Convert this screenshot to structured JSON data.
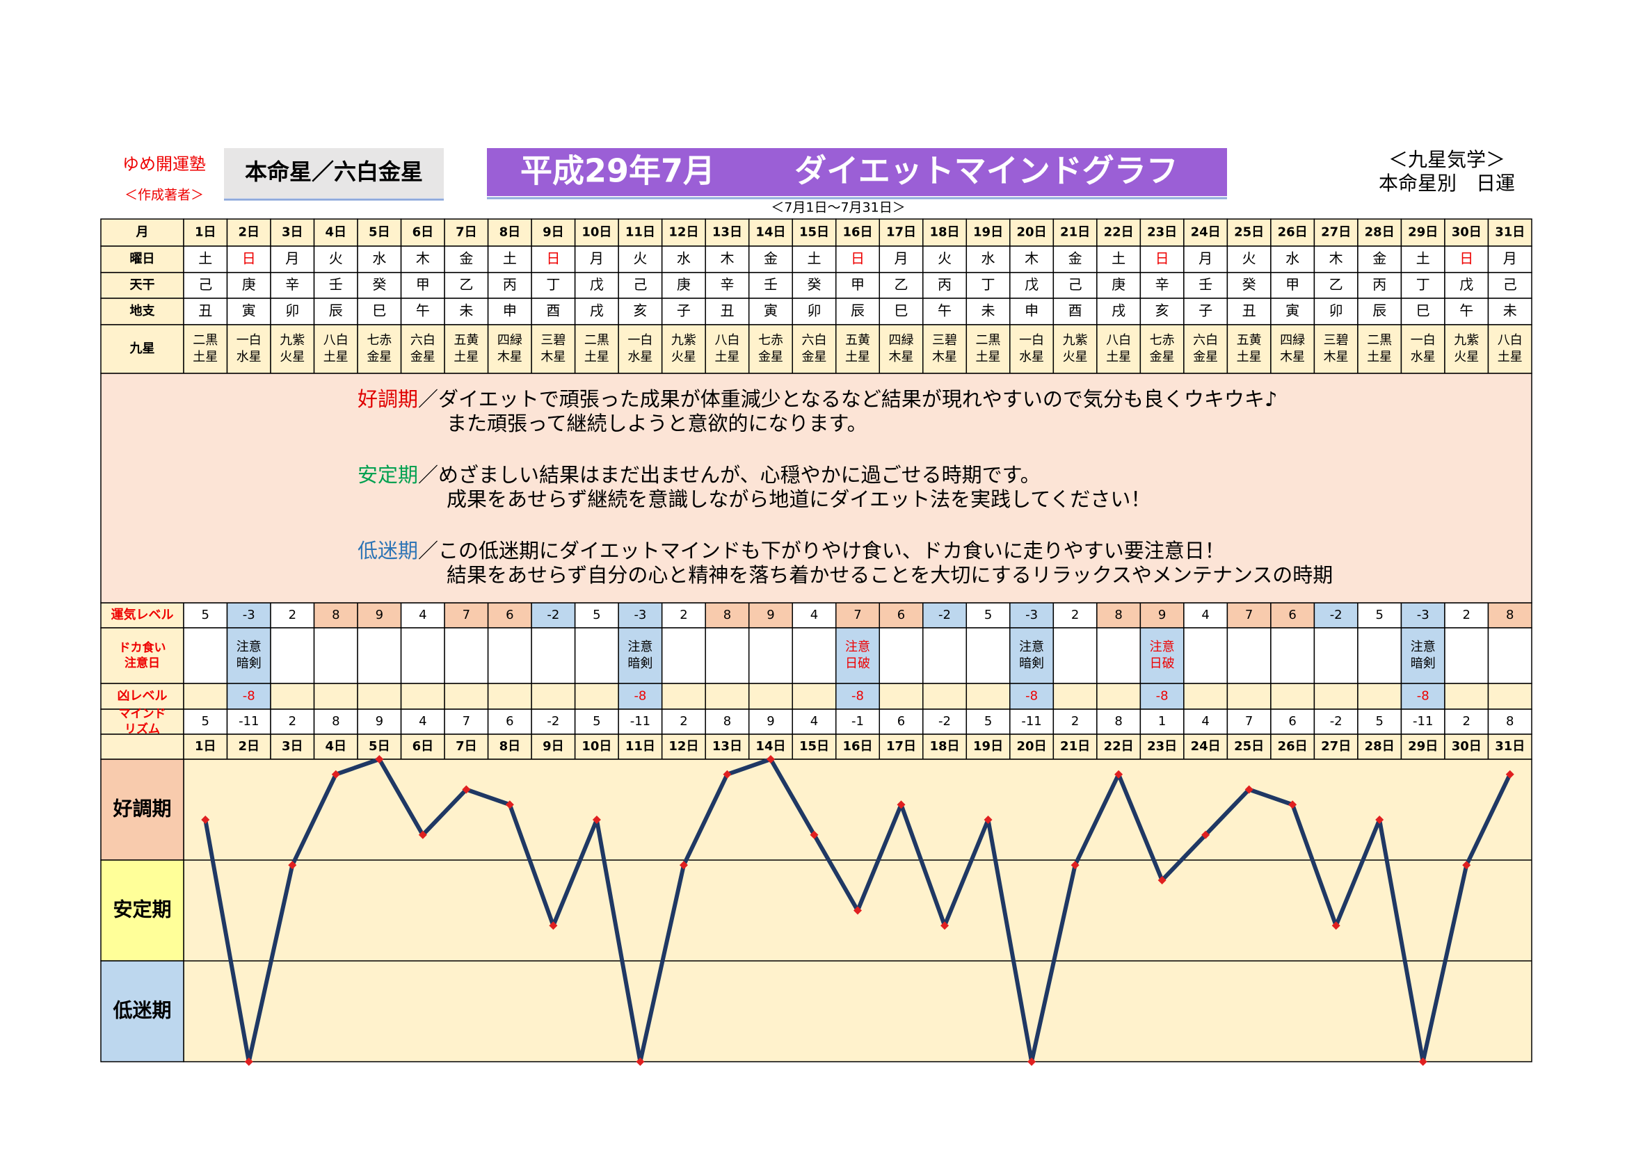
{
  "header": {
    "school": "ゆめ開運塾",
    "author": "＜作成著者＞",
    "star": "本命星／六白金星",
    "month": "平成29年7月",
    "title": "ダイエットマインドグラフ",
    "range": "＜7月1日～7月31日＞",
    "system": "＜九星気学＞",
    "kind": "本命星別　日運"
  },
  "table": {
    "row_labels": {
      "month": "月",
      "weekday": "曜日",
      "kan": "天干",
      "shi": "地支",
      "star": "九星",
      "luck": "運気レベル",
      "caution": [
        "ドカ食い",
        "注意日"
      ],
      "kyo": "凶レベル",
      "mind": [
        "マインド",
        "リズム"
      ]
    },
    "days": [
      "1日",
      "2日",
      "3日",
      "4日",
      "5日",
      "6日",
      "7日",
      "8日",
      "9日",
      "10日",
      "11日",
      "12日",
      "13日",
      "14日",
      "15日",
      "16日",
      "17日",
      "18日",
      "19日",
      "20日",
      "21日",
      "22日",
      "23日",
      "24日",
      "25日",
      "26日",
      "27日",
      "28日",
      "29日",
      "30日",
      "31日"
    ],
    "weekdays": [
      "土",
      "日",
      "月",
      "火",
      "水",
      "木",
      "金",
      "土",
      "日",
      "月",
      "火",
      "水",
      "木",
      "金",
      "土",
      "日",
      "月",
      "火",
      "水",
      "木",
      "金",
      "土",
      "日",
      "月",
      "火",
      "水",
      "木",
      "金",
      "土",
      "日",
      "月"
    ],
    "weekday_colors": [
      "#000",
      "#e00",
      "#000",
      "#000",
      "#000",
      "#000",
      "#000",
      "#000",
      "#e00",
      "#000",
      "#000",
      "#000",
      "#000",
      "#000",
      "#000",
      "#e00",
      "#000",
      "#000",
      "#000",
      "#000",
      "#000",
      "#000",
      "#e00",
      "#000",
      "#000",
      "#000",
      "#000",
      "#000",
      "#000",
      "#e00",
      "#000"
    ],
    "kan": [
      "己",
      "庚",
      "辛",
      "壬",
      "癸",
      "甲",
      "乙",
      "丙",
      "丁",
      "戊",
      "己",
      "庚",
      "辛",
      "壬",
      "癸",
      "甲",
      "乙",
      "丙",
      "丁",
      "戊",
      "己",
      "庚",
      "辛",
      "壬",
      "癸",
      "甲",
      "乙",
      "丙",
      "丁",
      "戊",
      "己"
    ],
    "shi": [
      "丑",
      "寅",
      "卯",
      "辰",
      "巳",
      "午",
      "未",
      "申",
      "酉",
      "戌",
      "亥",
      "子",
      "丑",
      "寅",
      "卯",
      "辰",
      "巳",
      "午",
      "未",
      "申",
      "酉",
      "戌",
      "亥",
      "子",
      "丑",
      "寅",
      "卯",
      "辰",
      "巳",
      "午",
      "未"
    ],
    "stars": [
      [
        "二黒",
        "土星"
      ],
      [
        "一白",
        "水星"
      ],
      [
        "九紫",
        "火星"
      ],
      [
        "八白",
        "土星"
      ],
      [
        "七赤",
        "金星"
      ],
      [
        "六白",
        "金星"
      ],
      [
        "五黄",
        "土星"
      ],
      [
        "四緑",
        "木星"
      ],
      [
        "三碧",
        "木星"
      ],
      [
        "二黒",
        "土星"
      ],
      [
        "一白",
        "水星"
      ],
      [
        "九紫",
        "火星"
      ],
      [
        "八白",
        "土星"
      ],
      [
        "七赤",
        "金星"
      ],
      [
        "六白",
        "金星"
      ],
      [
        "五黄",
        "土星"
      ],
      [
        "四緑",
        "木星"
      ],
      [
        "三碧",
        "木星"
      ],
      [
        "二黒",
        "土星"
      ],
      [
        "一白",
        "水星"
      ],
      [
        "九紫",
        "火星"
      ],
      [
        "八白",
        "土星"
      ],
      [
        "七赤",
        "金星"
      ],
      [
        "六白",
        "金星"
      ],
      [
        "五黄",
        "土星"
      ],
      [
        "四緑",
        "木星"
      ],
      [
        "三碧",
        "木星"
      ],
      [
        "二黒",
        "土星"
      ],
      [
        "一白",
        "水星"
      ],
      [
        "九紫",
        "火星"
      ],
      [
        "八白",
        "土星"
      ]
    ],
    "luck": [
      5,
      -3,
      2,
      8,
      9,
      4,
      7,
      6,
      -2,
      5,
      -3,
      2,
      8,
      9,
      4,
      7,
      6,
      -2,
      5,
      -3,
      2,
      8,
      9,
      4,
      7,
      6,
      -2,
      5,
      -3,
      2,
      8
    ],
    "caution": [
      null,
      {
        "lines": [
          "注意",
          "暗剣"
        ],
        "color": "#000"
      },
      null,
      null,
      null,
      null,
      null,
      null,
      null,
      null,
      {
        "lines": [
          "注意",
          "暗剣"
        ],
        "color": "#000"
      },
      null,
      null,
      null,
      null,
      {
        "lines": [
          "注意",
          "日破"
        ],
        "color": "#e00"
      },
      null,
      null,
      null,
      {
        "lines": [
          "注意",
          "暗剣"
        ],
        "color": "#000"
      },
      null,
      null,
      {
        "lines": [
          "注意",
          "日破"
        ],
        "color": "#e00"
      },
      null,
      null,
      null,
      null,
      null,
      {
        "lines": [
          "注意",
          "暗剣"
        ],
        "color": "#000"
      },
      null,
      null
    ],
    "kyo": [
      null,
      -8,
      null,
      null,
      null,
      null,
      null,
      null,
      null,
      null,
      -8,
      null,
      null,
      null,
      null,
      -8,
      null,
      null,
      null,
      -8,
      null,
      null,
      -8,
      null,
      null,
      null,
      null,
      null,
      -8,
      null,
      null
    ]
  },
  "descriptions": [
    {
      "term": "好調期",
      "color": "#e00000",
      "lines": [
        "／ダイエットで頑張った成果が体重減少となるなど結果が現れやすいので気分も良くウキウキ♪",
        "また頑張って継続しようと意欲的になります。"
      ]
    },
    {
      "term": "安定期",
      "color": "#00a050",
      "lines": [
        "／めざましい結果はまだ出ませんが、心穏やかに過ごせる時期です。",
        "成果をあせらず継続を意識しながら地道にダイエット法を実践してください！"
      ]
    },
    {
      "term": "低迷期",
      "color": "#2e75b6",
      "lines": [
        "／この低迷期にダイエットマインドも下がりやけ食い、ドカ食いに走りやすい要注意日！",
        "結果をあせらず自分の心と精神を落ち着かせることを大切にするリラックスやメンテナンスの時期"
      ]
    }
  ],
  "chart_data": {
    "type": "line",
    "categories": [
      "1日",
      "2日",
      "3日",
      "4日",
      "5日",
      "6日",
      "7日",
      "8日",
      "9日",
      "10日",
      "11日",
      "12日",
      "13日",
      "14日",
      "15日",
      "16日",
      "17日",
      "18日",
      "19日",
      "20日",
      "21日",
      "22日",
      "23日",
      "24日",
      "25日",
      "26日",
      "27日",
      "28日",
      "29日",
      "30日",
      "31日"
    ],
    "series": [
      {
        "name": "マインドリズム",
        "color": "#1f3864",
        "marker_color": "#e02020",
        "values": [
          5,
          -11,
          2,
          8,
          9,
          4,
          7,
          6,
          -2,
          5,
          -11,
          2,
          8,
          9,
          4,
          -1,
          6,
          -2,
          5,
          -11,
          2,
          8,
          1,
          4,
          7,
          6,
          -2,
          5,
          -11,
          2,
          8
        ]
      }
    ],
    "ylim": [
      -11,
      9
    ],
    "bands": [
      "好調期",
      "安定期",
      "低迷期"
    ],
    "band_colors": [
      "#f8cbad",
      "#ffff99",
      "#bdd7ee"
    ]
  }
}
